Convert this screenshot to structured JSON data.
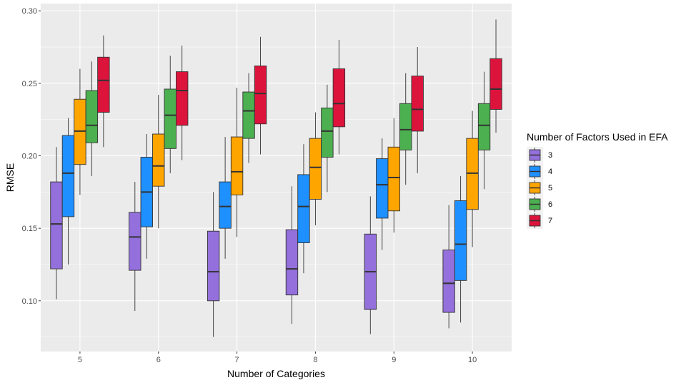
{
  "chart_data": {
    "type": "boxplot",
    "xlabel": "Number of Categories",
    "ylabel": "RMSE",
    "categories": [
      "5",
      "6",
      "7",
      "8",
      "9",
      "10"
    ],
    "ylim": [
      0.065,
      0.305
    ],
    "yticks": [
      0.1,
      0.15,
      0.2,
      0.25,
      0.3
    ],
    "ytick_labels": [
      "0.10",
      "0.15",
      "0.20",
      "0.25",
      "0.30"
    ],
    "grid": true,
    "legend": {
      "title": "Number of Factors Used in EFA",
      "position": "right"
    },
    "series": [
      {
        "name": "3",
        "color": "#9370DB",
        "boxes": [
          {
            "min": 0.101,
            "q1": 0.122,
            "median": 0.153,
            "q3": 0.182,
            "max": 0.206
          },
          {
            "min": 0.093,
            "q1": 0.121,
            "median": 0.144,
            "q3": 0.161,
            "max": 0.182
          },
          {
            "min": 0.075,
            "q1": 0.1,
            "median": 0.12,
            "q3": 0.148,
            "max": 0.175
          },
          {
            "min": 0.084,
            "q1": 0.104,
            "median": 0.122,
            "q3": 0.149,
            "max": 0.179
          },
          {
            "min": 0.077,
            "q1": 0.094,
            "median": 0.12,
            "q3": 0.146,
            "max": 0.172
          },
          {
            "min": 0.081,
            "q1": 0.092,
            "median": 0.112,
            "q3": 0.135,
            "max": 0.166
          }
        ]
      },
      {
        "name": "4",
        "color": "#1E90FF",
        "boxes": [
          {
            "min": 0.125,
            "q1": 0.158,
            "median": 0.188,
            "q3": 0.214,
            "max": 0.226
          },
          {
            "min": 0.129,
            "q1": 0.151,
            "median": 0.175,
            "q3": 0.199,
            "max": 0.215
          },
          {
            "min": 0.129,
            "q1": 0.15,
            "median": 0.165,
            "q3": 0.182,
            "max": 0.213
          },
          {
            "min": 0.119,
            "q1": 0.14,
            "median": 0.165,
            "q3": 0.187,
            "max": 0.208
          },
          {
            "min": 0.135,
            "q1": 0.157,
            "median": 0.18,
            "q3": 0.198,
            "max": 0.212
          },
          {
            "min": 0.085,
            "q1": 0.114,
            "median": 0.139,
            "q3": 0.169,
            "max": 0.186
          }
        ]
      },
      {
        "name": "5",
        "color": "#FFA500",
        "boxes": [
          {
            "min": 0.173,
            "q1": 0.194,
            "median": 0.217,
            "q3": 0.239,
            "max": 0.26
          },
          {
            "min": 0.15,
            "q1": 0.179,
            "median": 0.193,
            "q3": 0.215,
            "max": 0.242
          },
          {
            "min": 0.144,
            "q1": 0.173,
            "median": 0.189,
            "q3": 0.213,
            "max": 0.247
          },
          {
            "min": 0.152,
            "q1": 0.17,
            "median": 0.192,
            "q3": 0.212,
            "max": 0.23
          },
          {
            "min": 0.147,
            "q1": 0.162,
            "median": 0.185,
            "q3": 0.206,
            "max": 0.226
          },
          {
            "min": 0.137,
            "q1": 0.163,
            "median": 0.188,
            "q3": 0.212,
            "max": 0.231
          }
        ]
      },
      {
        "name": "6",
        "color": "#4CAF50",
        "boxes": [
          {
            "min": 0.186,
            "q1": 0.209,
            "median": 0.221,
            "q3": 0.245,
            "max": 0.265
          },
          {
            "min": 0.188,
            "q1": 0.205,
            "median": 0.228,
            "q3": 0.246,
            "max": 0.269
          },
          {
            "min": 0.195,
            "q1": 0.212,
            "median": 0.231,
            "q3": 0.244,
            "max": 0.257
          },
          {
            "min": 0.175,
            "q1": 0.199,
            "median": 0.217,
            "q3": 0.233,
            "max": 0.249
          },
          {
            "min": 0.18,
            "q1": 0.204,
            "median": 0.218,
            "q3": 0.236,
            "max": 0.257
          },
          {
            "min": 0.177,
            "q1": 0.204,
            "median": 0.221,
            "q3": 0.236,
            "max": 0.258
          }
        ]
      },
      {
        "name": "7",
        "color": "#DC143C",
        "boxes": [
          {
            "min": 0.206,
            "q1": 0.23,
            "median": 0.252,
            "q3": 0.268,
            "max": 0.283
          },
          {
            "min": 0.197,
            "q1": 0.221,
            "median": 0.245,
            "q3": 0.258,
            "max": 0.276
          },
          {
            "min": 0.201,
            "q1": 0.222,
            "median": 0.243,
            "q3": 0.262,
            "max": 0.282
          },
          {
            "min": 0.201,
            "q1": 0.22,
            "median": 0.236,
            "q3": 0.26,
            "max": 0.28
          },
          {
            "min": 0.188,
            "q1": 0.217,
            "median": 0.232,
            "q3": 0.255,
            "max": 0.275
          },
          {
            "min": 0.216,
            "q1": 0.232,
            "median": 0.246,
            "q3": 0.267,
            "max": 0.294
          }
        ]
      }
    ]
  }
}
